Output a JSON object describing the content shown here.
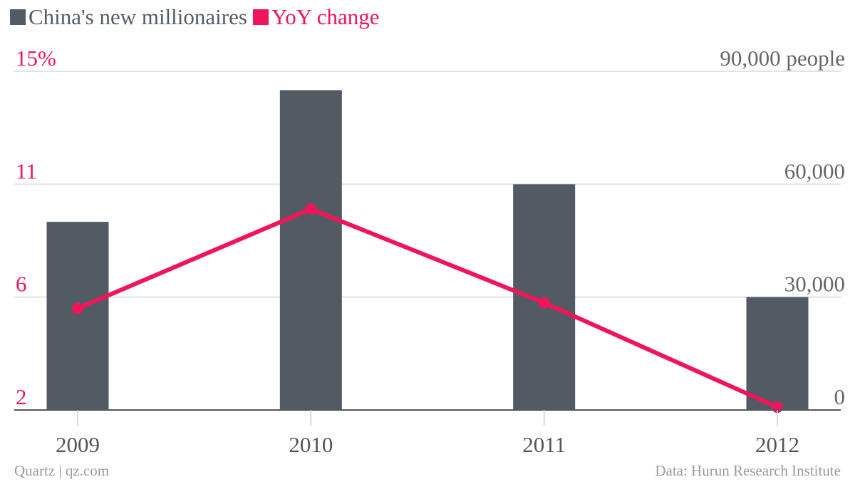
{
  "legend": [
    {
      "label": "China's new millionaires",
      "color": "#525b64"
    },
    {
      "label": "YoY change",
      "color": "#f0145a"
    }
  ],
  "footer": {
    "source_left": "Quartz | qz.com",
    "source_right": "Data: Hurun Research Institute"
  },
  "chart_data": {
    "type": "bar",
    "categories": [
      "2009",
      "2010",
      "2011",
      "2012"
    ],
    "series": [
      {
        "name": "China's new millionaires",
        "kind": "bar",
        "axis": "right",
        "color": "#525b64",
        "values": [
          50000,
          85000,
          60000,
          30000
        ]
      },
      {
        "name": "YoY change",
        "kind": "line",
        "axis": "left",
        "color": "#f0145a",
        "values": [
          5.6,
          9.9,
          5.8,
          2.1
        ]
      }
    ],
    "y_left": {
      "ticks": [
        2,
        6,
        11,
        15
      ],
      "tick_labels": [
        "2",
        "6",
        "11",
        "15%"
      ],
      "color": "#f0145a"
    },
    "y_right": {
      "ticks": [
        0,
        30000,
        60000,
        90000
      ],
      "tick_labels": [
        "0",
        "30,000",
        "60,000",
        "90,000 people"
      ],
      "ylim": [
        0,
        90000
      ],
      "color": "#666666"
    },
    "grid": true,
    "legend_position": "top-left"
  }
}
